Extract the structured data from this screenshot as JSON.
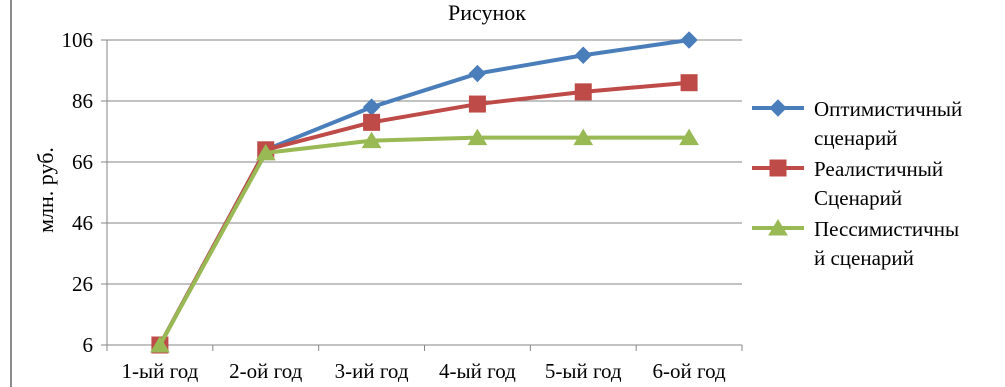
{
  "chart_data": {
    "type": "line",
    "title": "Рисунок",
    "ylabel": "млн. руб.",
    "xlabel": "",
    "categories": [
      "1-ый год",
      "2-ой год",
      "3-ий год",
      "4-ый год",
      "5-ый год",
      "6-ой год"
    ],
    "ylim": [
      6,
      106
    ],
    "yticks": [
      6,
      26,
      46,
      66,
      86,
      106
    ],
    "grid": true,
    "legend_position": "right",
    "series": [
      {
        "name": "Оптимистичный сценарий",
        "legend_lines": [
          "Оптимистичный",
          "сценарий"
        ],
        "values": [
          6,
          70,
          84,
          95,
          101,
          106
        ],
        "color": "#4a7ebb",
        "marker": "diamond"
      },
      {
        "name": "Реалистичный Сценарий",
        "legend_lines": [
          "Реалистичный",
          "Сценарий"
        ],
        "values": [
          6,
          70,
          79,
          85,
          89,
          92
        ],
        "color": "#be4b48",
        "marker": "square"
      },
      {
        "name": "Пессимистичный сценарий",
        "legend_lines": [
          "Пессимистичны",
          "й сценарий"
        ],
        "values": [
          6,
          69,
          73,
          74,
          74,
          74
        ],
        "color": "#98b954",
        "marker": "triangle"
      }
    ]
  }
}
